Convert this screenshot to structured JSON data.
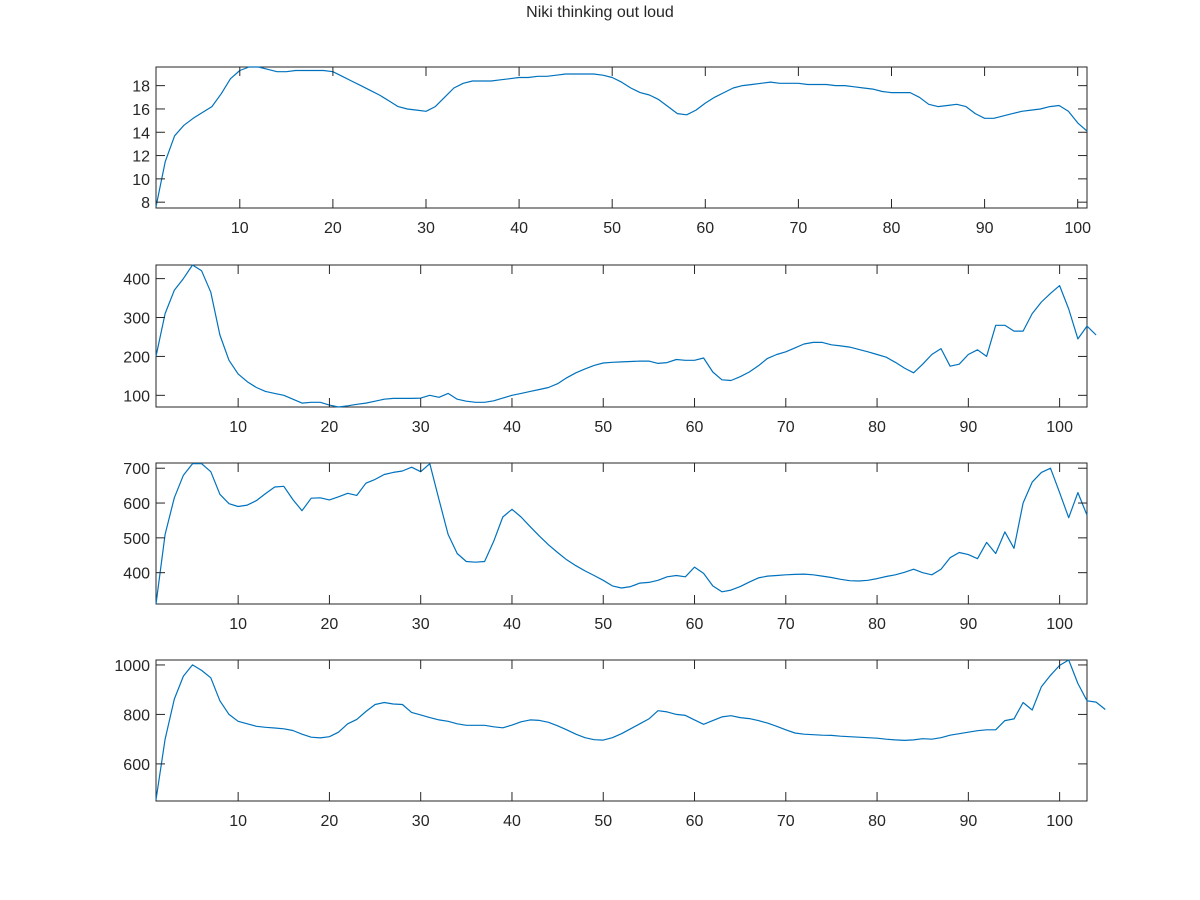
{
  "figure": {
    "title": "Niki thinking out loud"
  },
  "colors": {
    "series": "#0072BD",
    "axes": "#262626",
    "background": "#ffffff"
  },
  "chart_data": [
    {
      "type": "line",
      "title": "",
      "xlabel": "",
      "ylabel": "",
      "xlim": [
        1,
        101
      ],
      "ylim": [
        7.5,
        19.6
      ],
      "xticks": [
        10,
        20,
        30,
        40,
        50,
        60,
        70,
        80,
        90,
        100
      ],
      "yticks": [
        8,
        10,
        12,
        14,
        16,
        18
      ],
      "grid": false,
      "series": [
        {
          "values": [
            7.6,
            11.5,
            13.7,
            14.6,
            15.2,
            15.7,
            16.2,
            17.3,
            18.6,
            19.3,
            19.6,
            19.6,
            19.4,
            19.2,
            19.2,
            19.3,
            19.3,
            19.3,
            19.3,
            19.2,
            18.8,
            18.4,
            18.0,
            17.6,
            17.2,
            16.7,
            16.2,
            16.0,
            15.9,
            15.8,
            16.2,
            17.0,
            17.8,
            18.2,
            18.4,
            18.4,
            18.4,
            18.5,
            18.6,
            18.7,
            18.7,
            18.8,
            18.8,
            18.9,
            19.0,
            19.0,
            19.0,
            19.0,
            18.9,
            18.7,
            18.3,
            17.8,
            17.4,
            17.2,
            16.8,
            16.2,
            15.6,
            15.5,
            15.9,
            16.5,
            17.0,
            17.4,
            17.8,
            18.0,
            18.1,
            18.2,
            18.3,
            18.2,
            18.2,
            18.2,
            18.1,
            18.1,
            18.1,
            18.0,
            18.0,
            17.9,
            17.8,
            17.7,
            17.5,
            17.4,
            17.4,
            17.4,
            17.0,
            16.4,
            16.2,
            16.3,
            16.4,
            16.2,
            15.6,
            15.2,
            15.2,
            15.4,
            15.6,
            15.8,
            15.9,
            16.0,
            16.2,
            16.3,
            15.8,
            14.8,
            14.1
          ]
        }
      ]
    },
    {
      "type": "line",
      "title": "",
      "xlabel": "",
      "ylabel": "",
      "xlim": [
        1,
        103
      ],
      "ylim": [
        70,
        435
      ],
      "xticks": [
        10,
        20,
        30,
        40,
        50,
        60,
        70,
        80,
        90,
        100
      ],
      "yticks": [
        100,
        200,
        300,
        400
      ],
      "grid": false,
      "series": [
        {
          "values": [
            200,
            310,
            370,
            400,
            435,
            420,
            365,
            255,
            190,
            155,
            135,
            120,
            110,
            105,
            100,
            90,
            80,
            82,
            82,
            75,
            70,
            73,
            77,
            80,
            85,
            90,
            92,
            92,
            92,
            93,
            100,
            95,
            105,
            90,
            85,
            82,
            82,
            86,
            93,
            100,
            105,
            110,
            115,
            120,
            130,
            145,
            158,
            168,
            177,
            183,
            185,
            186,
            187,
            188,
            188,
            182,
            184,
            192,
            190,
            190,
            196,
            160,
            140,
            138,
            148,
            160,
            176,
            195,
            205,
            212,
            222,
            232,
            236,
            236,
            230,
            227,
            224,
            218,
            212,
            205,
            198,
            185,
            170,
            158,
            180,
            205,
            220,
            175,
            180,
            205,
            217,
            200,
            280,
            280,
            265,
            265,
            310,
            340,
            362,
            382,
            322,
            245,
            278,
            255
          ]
        }
      ]
    },
    {
      "type": "line",
      "title": "",
      "xlabel": "",
      "ylabel": "",
      "xlim": [
        1,
        103
      ],
      "ylim": [
        310,
        715
      ],
      "xticks": [
        10,
        20,
        30,
        40,
        50,
        60,
        70,
        80,
        90,
        100
      ],
      "yticks": [
        400,
        500,
        600,
        700
      ],
      "grid": false,
      "series": [
        {
          "values": [
            310,
            510,
            615,
            680,
            713,
            713,
            690,
            625,
            598,
            590,
            594,
            607,
            627,
            646,
            648,
            610,
            578,
            614,
            615,
            609,
            618,
            628,
            622,
            657,
            668,
            682,
            688,
            692,
            703,
            690,
            713,
            610,
            510,
            455,
            432,
            430,
            432,
            490,
            560,
            582,
            560,
            532,
            505,
            480,
            458,
            437,
            420,
            405,
            392,
            378,
            362,
            356,
            360,
            370,
            372,
            378,
            388,
            392,
            388,
            416,
            398,
            362,
            345,
            350,
            360,
            373,
            385,
            390,
            392,
            394,
            395,
            396,
            394,
            390,
            386,
            381,
            377,
            376,
            378,
            383,
            389,
            394,
            401,
            410,
            400,
            394,
            410,
            443,
            458,
            452,
            440,
            487,
            455,
            517,
            470,
            600,
            660,
            688,
            700,
            630,
            558,
            630,
            565
          ]
        }
      ]
    },
    {
      "type": "line",
      "title": "",
      "xlabel": "",
      "ylabel": "",
      "xlim": [
        1,
        103
      ],
      "ylim": [
        450,
        1020
      ],
      "xticks": [
        10,
        20,
        30,
        40,
        50,
        60,
        70,
        80,
        90,
        100
      ],
      "yticks": [
        600,
        800,
        1000
      ],
      "grid": false,
      "series": [
        {
          "values": [
            455,
            700,
            862,
            955,
            1000,
            978,
            948,
            855,
            800,
            772,
            762,
            752,
            748,
            745,
            742,
            735,
            720,
            708,
            705,
            710,
            728,
            762,
            780,
            812,
            840,
            848,
            842,
            840,
            808,
            798,
            787,
            778,
            772,
            762,
            756,
            756,
            756,
            750,
            746,
            757,
            770,
            778,
            776,
            768,
            754,
            738,
            720,
            706,
            698,
            696,
            706,
            722,
            742,
            762,
            782,
            815,
            810,
            800,
            796,
            778,
            760,
            775,
            790,
            795,
            787,
            783,
            775,
            765,
            752,
            738,
            725,
            720,
            718,
            716,
            715,
            712,
            710,
            708,
            706,
            704,
            700,
            697,
            695,
            697,
            702,
            700,
            706,
            716,
            722,
            728,
            734,
            738,
            738,
            775,
            782,
            848,
            818,
            912,
            958,
            998,
            1020,
            925,
            855,
            850,
            820
          ]
        }
      ]
    }
  ]
}
